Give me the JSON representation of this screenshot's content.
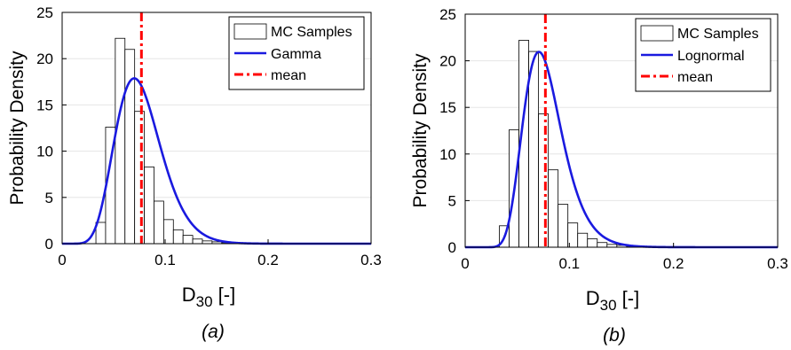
{
  "panels": [
    {
      "panel_label": "(a)",
      "xlabel_main": "D",
      "xlabel_sub": "30",
      "xlabel_tail": " [-]",
      "ylabel": "Probability Density",
      "legend": {
        "hist": "MC Samples",
        "fit": "Gamma",
        "mean": "mean"
      }
    },
    {
      "panel_label": "(b)",
      "xlabel_main": "D",
      "xlabel_sub": "30",
      "xlabel_tail": " [-]",
      "ylabel": "Probability Density",
      "legend": {
        "hist": "MC Samples",
        "fit": "Lognormal",
        "mean": "mean"
      }
    }
  ],
  "colors": {
    "fit": "#1a1adf",
    "mean": "#ff0000",
    "bar_fill": "#ffffff",
    "bar_edge": "#000000",
    "grid": "#e6e6e6"
  },
  "chart_data": [
    {
      "type": "bar",
      "title": "",
      "xlabel": "D30 [-]",
      "ylabel": "Probability Density",
      "xlim": [
        0,
        0.3
      ],
      "ylim": [
        0,
        25
      ],
      "xticks": [
        0,
        0.1,
        0.2,
        0.3
      ],
      "xtick_labels": [
        "0",
        "0.1",
        "0.2",
        "0.3"
      ],
      "yticks": [
        0,
        5,
        10,
        15,
        20,
        25
      ],
      "grid": true,
      "legend_position": "top-right",
      "histogram": {
        "name": "MC Samples",
        "bin_width": 0.0094,
        "bin_centers": [
          0.0375,
          0.0469,
          0.0563,
          0.0657,
          0.0751,
          0.0845,
          0.0939,
          0.1033,
          0.1127,
          0.1221,
          0.1315,
          0.1409,
          0.1503,
          0.1597
        ],
        "values": [
          2.3,
          12.6,
          22.2,
          21.0,
          14.3,
          8.3,
          4.6,
          2.6,
          1.5,
          0.9,
          0.5,
          0.3,
          0.2,
          0.1
        ]
      },
      "fit": {
        "name": "Gamma",
        "distribution": "gamma",
        "shape": 11,
        "mean": 0.077
      },
      "mean_line": {
        "name": "mean",
        "x": 0.077
      }
    },
    {
      "type": "bar",
      "title": "",
      "xlabel": "D30 [-]",
      "ylabel": "Probability Density",
      "xlim": [
        0,
        0.3
      ],
      "ylim": [
        0,
        25
      ],
      "xticks": [
        0,
        0.1,
        0.2,
        0.3
      ],
      "xtick_labels": [
        "0",
        "0.1",
        "0.2",
        "0.3"
      ],
      "yticks": [
        0,
        5,
        10,
        15,
        20,
        25
      ],
      "grid": true,
      "legend_position": "top-right",
      "histogram": {
        "name": "MC Samples",
        "bin_width": 0.0094,
        "bin_centers": [
          0.0375,
          0.0469,
          0.0563,
          0.0657,
          0.0751,
          0.0845,
          0.0939,
          0.1033,
          0.1127,
          0.1221,
          0.1315,
          0.1409,
          0.1503,
          0.1597
        ],
        "values": [
          2.3,
          12.6,
          22.2,
          21.0,
          14.3,
          8.3,
          4.6,
          2.6,
          1.5,
          0.9,
          0.5,
          0.3,
          0.2,
          0.1
        ]
      },
      "fit": {
        "name": "Lognormal",
        "distribution": "lognormal",
        "mu": -2.5805,
        "sigma": 0.26
      },
      "mean_line": {
        "name": "mean",
        "x": 0.077
      }
    }
  ]
}
